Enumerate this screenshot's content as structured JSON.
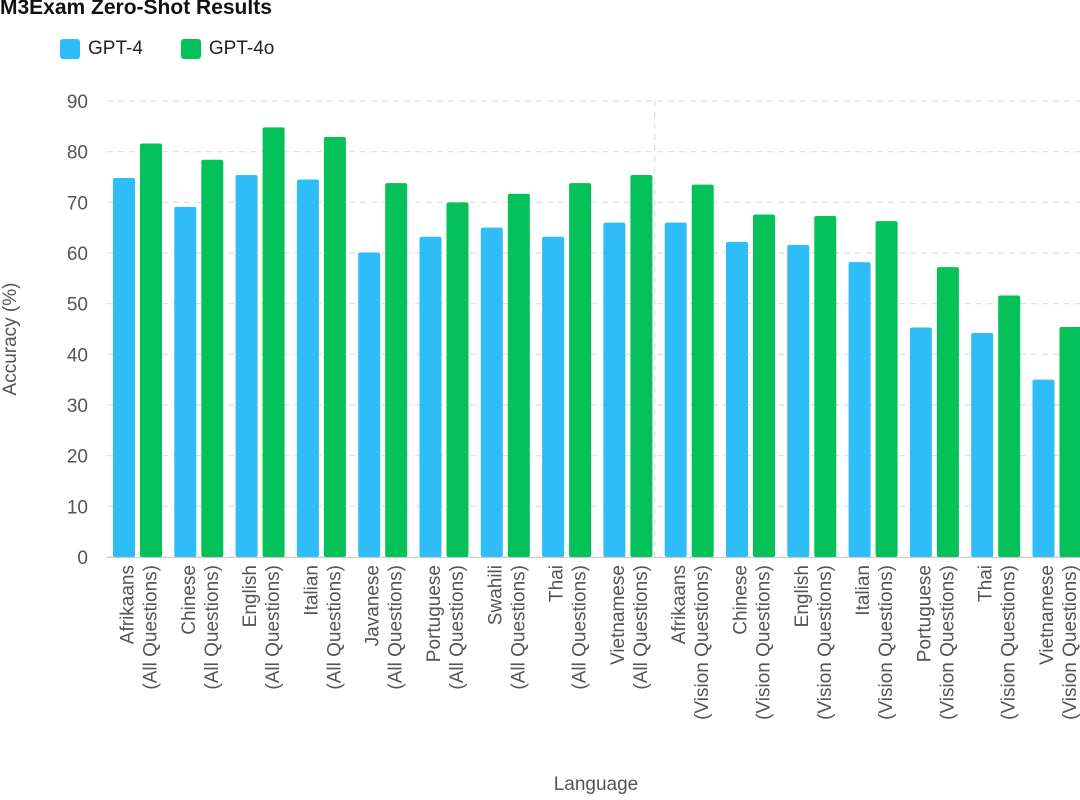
{
  "chart_data": {
    "type": "bar",
    "title": "M3Exam Zero-Shot Results",
    "xlabel": "Language",
    "ylabel": "Accuracy (%)",
    "ylim": [
      0,
      90
    ],
    "yticks": [
      0,
      10,
      20,
      30,
      40,
      50,
      60,
      70,
      80,
      90
    ],
    "grid": true,
    "legend_position": "top-left",
    "categories": [
      [
        "Afrikaans",
        "(All Questions)"
      ],
      [
        "Chinese",
        "(All Questions)"
      ],
      [
        "English",
        "(All Questions)"
      ],
      [
        "Italian",
        "(All Questions)"
      ],
      [
        "Javanese",
        "(All Questions)"
      ],
      [
        "Portuguese",
        "(All Questions)"
      ],
      [
        "Swahili",
        "(All Questions)"
      ],
      [
        "Thai",
        "(All Questions)"
      ],
      [
        "Vietnamese",
        "(All Questions)"
      ],
      [
        "Afrikaans",
        "(Vision Questions)"
      ],
      [
        "Chinese",
        "(Vision Questions)"
      ],
      [
        "English",
        "(Vision Questions)"
      ],
      [
        "Italian",
        "(Vision Questions)"
      ],
      [
        "Portuguese",
        "(Vision Questions)"
      ],
      [
        "Thai",
        "(Vision Questions)"
      ],
      [
        "Vietnamese",
        "(Vision Questions)"
      ]
    ],
    "series": [
      {
        "name": "GPT-4",
        "color": "#2ebdf7",
        "values": [
          74.8,
          69.1,
          75.4,
          74.5,
          60.1,
          63.2,
          65.0,
          63.2,
          66.0,
          66.0,
          62.2,
          61.6,
          58.2,
          45.3,
          44.2,
          35.0
        ]
      },
      {
        "name": "GPT-4o",
        "color": "#04c159",
        "values": [
          81.6,
          78.4,
          84.8,
          82.9,
          73.8,
          70.0,
          71.7,
          73.8,
          75.4,
          73.5,
          67.6,
          67.3,
          66.3,
          57.2,
          51.6,
          45.4
        ]
      }
    ],
    "group_divider_after_index": 8
  }
}
